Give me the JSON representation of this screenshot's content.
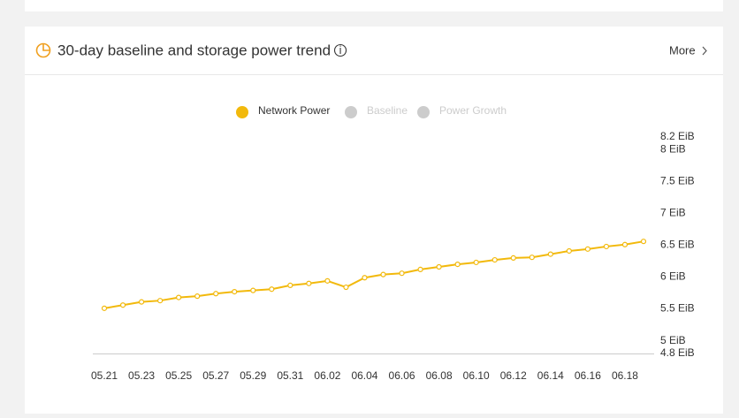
{
  "header": {
    "title": "30-day baseline and storage power trend",
    "more": "More"
  },
  "chart_data": {
    "type": "line",
    "categories": [
      "05.21",
      null,
      "05.23",
      null,
      "05.25",
      null,
      "05.27",
      null,
      "05.29",
      null,
      "05.31",
      null,
      "06.02",
      null,
      "06.04",
      null,
      "06.06",
      null,
      "06.08",
      null,
      "06.10",
      null,
      "06.12",
      null,
      "06.14",
      null,
      "06.16",
      null,
      "06.18",
      null
    ],
    "series": [
      {
        "name": "Network Power",
        "color": "#f2b90c",
        "values": [
          5.51,
          5.56,
          5.61,
          5.63,
          5.68,
          5.7,
          5.74,
          5.77,
          5.79,
          5.81,
          5.87,
          5.9,
          5.94,
          5.84,
          5.99,
          6.04,
          6.06,
          6.12,
          6.16,
          6.2,
          6.23,
          6.27,
          6.3,
          6.31,
          6.36,
          6.41,
          6.44,
          6.48,
          6.51,
          6.56
        ]
      },
      {
        "name": "Baseline",
        "color": "#cccccc",
        "hidden": true
      },
      {
        "name": "Power Growth",
        "color": "#cccccc",
        "hidden": true
      }
    ],
    "ylim": [
      4.8,
      8.2
    ],
    "yticks": [
      {
        "value": 4.8,
        "label": "4.8 EiB"
      },
      {
        "value": 5,
        "label": "5 EiB"
      },
      {
        "value": 5.5,
        "label": "5.5 EiB"
      },
      {
        "value": 6,
        "label": "6 EiB"
      },
      {
        "value": 6.5,
        "label": "6.5 EiB"
      },
      {
        "value": 7,
        "label": "7 EiB"
      },
      {
        "value": 7.5,
        "label": "7.5 EiB"
      },
      {
        "value": 8,
        "label": "8 EiB"
      },
      {
        "value": 8.2,
        "label": "8.2 EiB"
      }
    ],
    "grid": false
  }
}
